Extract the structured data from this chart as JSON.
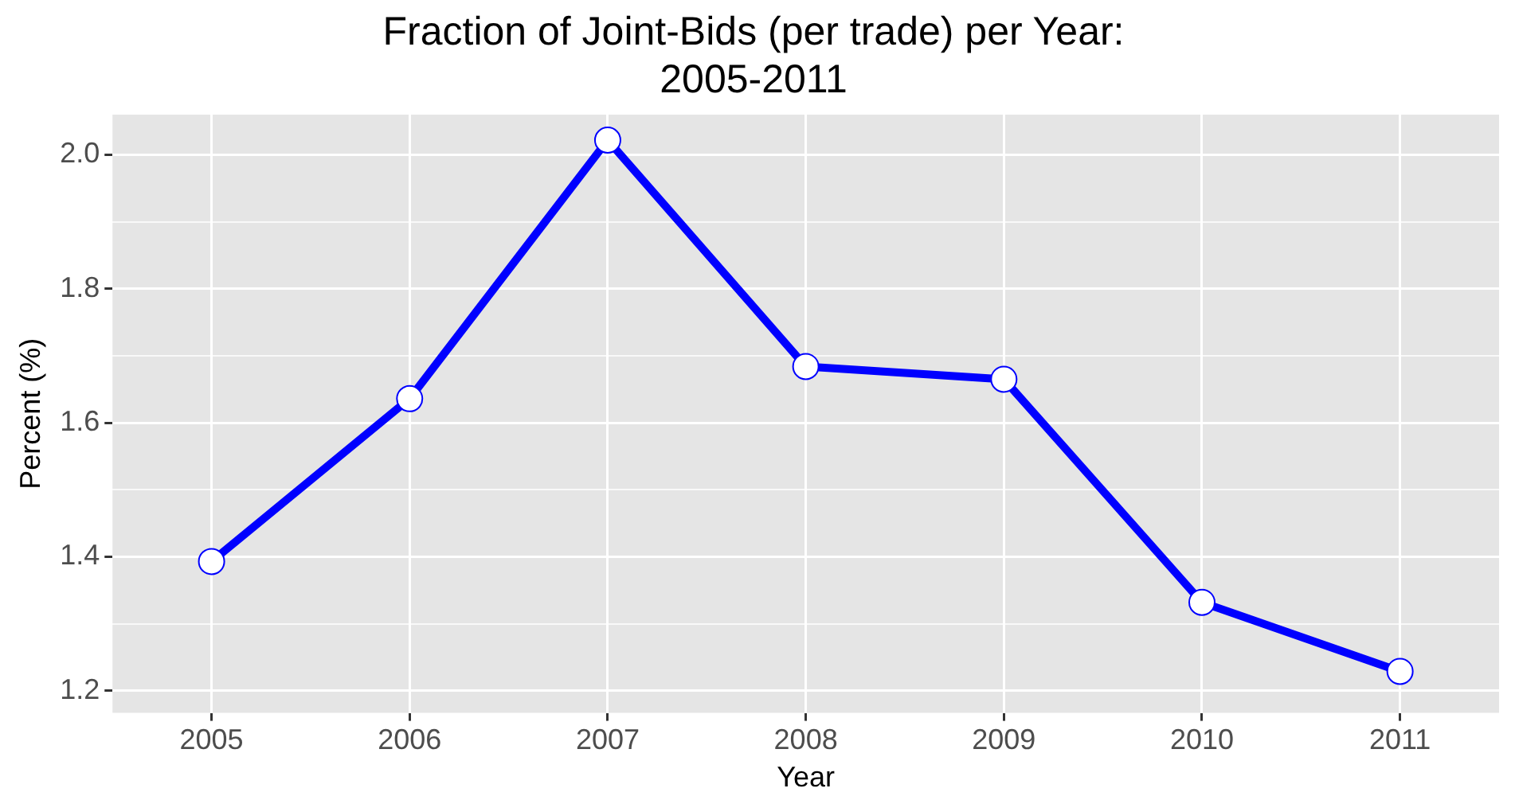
{
  "chart_data": {
    "type": "line",
    "title": "Fraction of Joint-Bids (per trade) per Year:\n2005-2011",
    "xlabel": "Year",
    "ylabel": "Percent (%)",
    "categories": [
      "2005",
      "2006",
      "2007",
      "2008",
      "2009",
      "2010",
      "2011"
    ],
    "series": [
      {
        "color": "#0000ff",
        "values": [
          1.393,
          1.636,
          2.022,
          1.684,
          1.665,
          1.332,
          1.229
        ]
      }
    ],
    "ylim": [
      1.167,
      2.06
    ],
    "yticks": [
      {
        "value": 1.2,
        "label": "1.2"
      },
      {
        "value": 1.3,
        "label": null
      },
      {
        "value": 1.4,
        "label": "1.4"
      },
      {
        "value": 1.5,
        "label": null
      },
      {
        "value": 1.6,
        "label": "1.6"
      },
      {
        "value": 1.7,
        "label": null
      },
      {
        "value": 1.8,
        "label": "1.8"
      },
      {
        "value": 1.9,
        "label": null
      },
      {
        "value": 2.0,
        "label": "2.0"
      }
    ],
    "grid": true,
    "legend": false,
    "marker": "circle",
    "line_style": "solid"
  }
}
